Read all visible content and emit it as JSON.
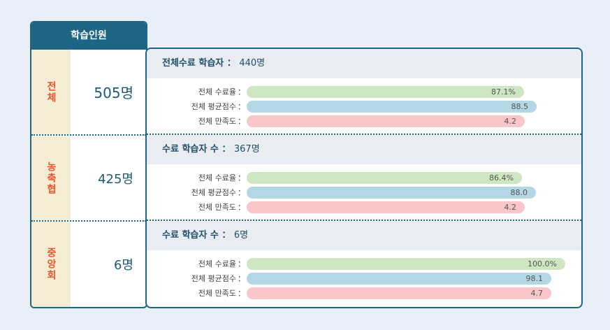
{
  "left": {
    "header": "학습인원",
    "rows": [
      {
        "label": "전체",
        "count": "505명"
      },
      {
        "label": "농축협",
        "count": "425명"
      },
      {
        "label": "중앙회",
        "count": "6명"
      }
    ]
  },
  "sections": [
    {
      "title": "전체수료 학습자 ： ",
      "count": "440명",
      "metrics": [
        {
          "label": "전체 수료율",
          "colon": "：",
          "value": "87.1%",
          "fraction": 0.871,
          "kind": "completion"
        },
        {
          "label": "전체 평균점수",
          "colon": "：",
          "value": "88.5",
          "fraction": 0.91,
          "kind": "score"
        },
        {
          "label": "전체 만족도",
          "colon": "：",
          "value": "4.2",
          "fraction": 0.873,
          "kind": "satisfaction"
        }
      ]
    },
    {
      "title": "수료 학습자 수 ： ",
      "count": "367명",
      "metrics": [
        {
          "label": "전체 수료율",
          "colon": "：",
          "value": "86.4%",
          "fraction": 0.864,
          "kind": "completion"
        },
        {
          "label": "전체 평균점수",
          "colon": "：",
          "value": "88.0",
          "fraction": 0.908,
          "kind": "score"
        },
        {
          "label": "전체 만족도",
          "colon": "：",
          "value": "4.2",
          "fraction": 0.873,
          "kind": "satisfaction"
        }
      ]
    },
    {
      "title": "수료 학습자 수 ： ",
      "count": "6명",
      "metrics": [
        {
          "label": "전체 수료율",
          "colon": "：",
          "value": "100.0%",
          "fraction": 1.0,
          "kind": "completion"
        },
        {
          "label": "전체 평균점수",
          "colon": "：",
          "value": "98.1",
          "fraction": 0.956,
          "kind": "score"
        },
        {
          "label": "전체 만족도",
          "colon": "：",
          "value": "4.7",
          "fraction": 0.956,
          "kind": "satisfaction"
        }
      ]
    }
  ],
  "colors": {
    "primary": "#1e6485",
    "label_bg": "#f4ecd5",
    "label_text": "#e8562a",
    "completion_bar": "#cfe6c2",
    "score_bar": "#b3d7e4",
    "satisfaction_bar": "#f9c6c9"
  }
}
